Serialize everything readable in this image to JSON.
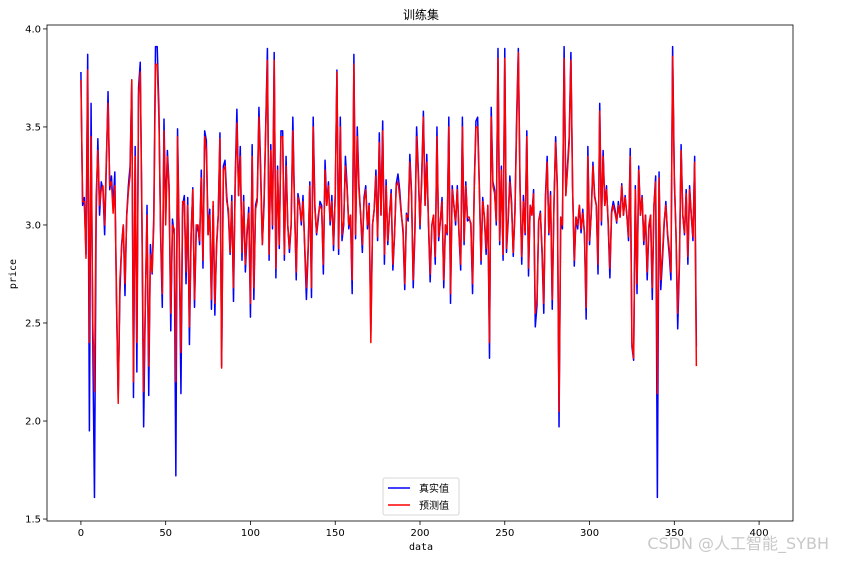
{
  "chart_data": {
    "type": "line",
    "title": "训练集",
    "xlabel": "data",
    "ylabel": "price",
    "xlim": [
      -20,
      420
    ],
    "ylim": [
      1.49,
      4.02
    ],
    "xticks": [
      0,
      50,
      100,
      150,
      200,
      250,
      300,
      350,
      400
    ],
    "yticks": [
      1.5,
      2.0,
      2.5,
      3.0,
      3.5,
      4.0
    ],
    "xtick_labels": [
      "0",
      "50",
      "100",
      "150",
      "200",
      "250",
      "300",
      "350",
      "400"
    ],
    "ytick_labels": [
      "1.5",
      "2.0",
      "2.5",
      "3.0",
      "3.5",
      "4.0"
    ],
    "legend_position": "bottom-center",
    "grid": false,
    "series": [
      {
        "name": "真实值",
        "color": "#0000ff",
        "values": [
          3.78,
          3.1,
          3.14,
          2.85,
          3.87,
          1.95,
          3.62,
          2.4,
          1.61,
          3.05,
          3.44,
          3.05,
          3.22,
          3.18,
          2.95,
          3.3,
          3.68,
          3.18,
          3.25,
          3.1,
          3.27,
          2.6,
          2.12,
          2.65,
          2.9,
          3.0,
          2.64,
          3.05,
          3.2,
          3.3,
          3.74,
          2.12,
          3.4,
          2.25,
          3.7,
          3.83,
          3.0,
          1.97,
          2.6,
          3.1,
          2.13,
          2.9,
          2.75,
          3.05,
          3.91,
          3.91,
          3.6,
          2.95,
          2.58,
          3.54,
          3.05,
          3.38,
          3.2,
          2.46,
          3.03,
          2.95,
          1.72,
          3.49,
          2.9,
          2.14,
          3.1,
          3.15,
          2.7,
          3.14,
          2.39,
          2.95,
          3.19,
          2.58,
          2.96,
          3.0,
          2.9,
          3.28,
          2.78,
          3.48,
          3.43,
          2.95,
          3.08,
          2.57,
          3.1,
          2.54,
          2.9,
          3.05,
          3.47,
          2.28,
          3.3,
          3.33,
          3.15,
          3.05,
          2.85,
          3.15,
          2.61,
          3.24,
          3.59,
          3.15,
          3.4,
          2.82,
          3.15,
          2.76,
          2.95,
          3.09,
          2.53,
          3.41,
          2.62,
          3.1,
          3.14,
          3.6,
          3.3,
          2.9,
          3.1,
          3.5,
          3.9,
          2.82,
          3.41,
          2.98,
          3.88,
          2.73,
          3.3,
          2.88,
          3.48,
          3.48,
          2.82,
          3.35,
          3.0,
          2.86,
          3.0,
          3.55,
          3.1,
          2.72,
          3.16,
          3.11,
          3.0,
          3.15,
          2.88,
          2.62,
          2.86,
          3.22,
          2.63,
          3.55,
          3.1,
          2.95,
          3.03,
          3.12,
          3.1,
          2.75,
          3.33,
          3.1,
          3.22,
          3.0,
          3.15,
          2.87,
          3.16,
          3.79,
          2.85,
          3.55,
          2.92,
          3.0,
          3.35,
          3.2,
          2.98,
          3.05,
          2.65,
          3.87,
          2.93,
          3.5,
          3.2,
          3.05,
          2.86,
          3.14,
          3.2,
          2.98,
          3.11,
          2.45,
          3.0,
          3.08,
          3.28,
          2.92,
          3.47,
          3.05,
          3.53,
          2.8,
          3.23,
          2.9,
          3.05,
          3.18,
          2.77,
          2.95,
          3.21,
          3.26,
          3.18,
          3.06,
          2.96,
          2.67,
          3.06,
          3.02,
          3.36,
          3.17,
          2.68,
          2.96,
          3.5,
          3.28,
          2.98,
          3.25,
          3.58,
          3.1,
          3.36,
          3.0,
          2.71,
          3.0,
          3.05,
          2.8,
          3.5,
          2.92,
          3.02,
          3.14,
          2.68,
          3.0,
          2.95,
          3.55,
          2.6,
          3.2,
          3.1,
          3.0,
          3.2,
          2.95,
          2.77,
          3.55,
          2.9,
          3.22,
          3.02,
          3.03,
          3.01,
          2.65,
          3.2,
          3.53,
          3.55,
          3.2,
          2.8,
          3.14,
          3.03,
          2.85,
          3.1,
          2.32,
          3.6,
          3.22,
          3.18,
          3.0,
          3.9,
          2.9,
          3.3,
          2.82,
          3.9,
          2.86,
          3.02,
          3.25,
          3.12,
          2.84,
          3.07,
          3.55,
          3.9,
          3.2,
          2.8,
          3.15,
          2.95,
          3.48,
          2.74,
          3.1,
          3.05,
          3.18,
          2.48,
          2.59,
          3.02,
          3.07,
          2.85,
          2.55,
          3.15,
          3.35,
          2.95,
          3.17,
          2.57,
          3.1,
          3.45,
          3.2,
          1.97,
          3.04,
          2.98,
          3.91,
          3.15,
          3.3,
          3.45,
          3.88,
          3.2,
          2.79,
          3.04,
          2.98,
          3.1,
          2.96,
          3.08,
          2.95,
          2.52,
          3.4,
          2.9,
          3.06,
          3.32,
          3.15,
          3.1,
          2.75,
          3.62,
          3.0,
          3.38,
          3.1,
          3.2,
          3.0,
          2.73,
          3.07,
          3.12,
          3.08,
          3.01,
          3.12,
          3.04,
          3.21,
          3.05,
          3.15,
          3.05,
          2.92,
          3.39,
          2.38,
          2.31,
          3.2,
          2.65,
          3.3,
          3.05,
          3.15,
          2.9,
          3.05,
          2.72,
          2.98,
          3.05,
          2.62,
          3.1,
          3.25,
          1.61,
          3.27,
          2.67,
          2.82,
          3.0,
          3.12,
          2.95,
          2.85,
          2.72,
          3.91,
          3.25,
          2.95,
          2.47,
          2.79,
          3.41,
          3.05,
          2.95,
          3.18,
          2.8,
          3.2,
          3.05,
          2.92,
          3.35,
          2.38
        ]
      },
      {
        "name": "预测值",
        "color": "#ff0000",
        "values": [
          3.74,
          3.12,
          3.12,
          2.83,
          3.79,
          2.4,
          3.45,
          2.5,
          2.15,
          3.15,
          3.38,
          3.1,
          3.18,
          3.2,
          3.0,
          3.34,
          3.62,
          3.2,
          3.22,
          3.06,
          3.2,
          2.65,
          2.09,
          2.72,
          2.88,
          3.0,
          2.7,
          3.04,
          3.17,
          3.25,
          3.74,
          2.2,
          3.35,
          2.4,
          3.66,
          3.78,
          3.05,
          2.15,
          2.6,
          3.05,
          2.28,
          2.85,
          2.76,
          3.0,
          3.82,
          3.82,
          3.55,
          2.98,
          2.65,
          3.48,
          3.0,
          3.35,
          3.18,
          2.55,
          3.0,
          2.98,
          2.2,
          3.45,
          2.88,
          2.35,
          3.12,
          3.12,
          2.76,
          3.1,
          2.48,
          2.95,
          3.18,
          2.62,
          3.0,
          3.0,
          2.92,
          3.24,
          2.82,
          3.45,
          3.38,
          2.95,
          3.05,
          2.62,
          3.12,
          2.6,
          2.88,
          3.05,
          3.44,
          2.27,
          3.28,
          3.3,
          3.12,
          3.08,
          2.86,
          3.12,
          2.68,
          3.2,
          3.52,
          3.15,
          3.35,
          2.86,
          3.12,
          2.8,
          2.98,
          3.06,
          2.6,
          3.35,
          2.68,
          3.08,
          3.12,
          3.55,
          3.25,
          2.9,
          3.12,
          3.48,
          3.84,
          2.85,
          3.38,
          3.0,
          3.84,
          2.78,
          3.28,
          2.9,
          3.45,
          3.45,
          2.85,
          3.3,
          3.0,
          2.88,
          3.0,
          3.48,
          3.08,
          2.76,
          3.14,
          3.1,
          3.02,
          3.12,
          2.9,
          2.68,
          2.88,
          3.2,
          2.68,
          3.5,
          3.08,
          2.96,
          3.05,
          3.1,
          3.08,
          2.8,
          3.28,
          3.1,
          3.2,
          3.02,
          3.12,
          2.9,
          3.15,
          3.78,
          2.88,
          3.5,
          2.95,
          3.02,
          3.3,
          3.18,
          3.0,
          3.05,
          2.72,
          3.82,
          2.95,
          3.45,
          3.18,
          3.05,
          2.9,
          3.12,
          3.18,
          3.0,
          3.1,
          2.4,
          3.0,
          3.08,
          3.25,
          2.94,
          3.42,
          3.05,
          3.48,
          2.85,
          3.2,
          2.92,
          3.05,
          3.16,
          2.8,
          2.96,
          3.2,
          3.22,
          3.15,
          3.05,
          2.98,
          2.7,
          3.05,
          3.04,
          3.32,
          3.15,
          2.72,
          2.98,
          3.45,
          3.25,
          3.0,
          3.22,
          3.55,
          3.1,
          3.32,
          3.02,
          2.75,
          3.0,
          3.05,
          2.84,
          3.45,
          2.94,
          3.02,
          3.12,
          2.72,
          3.0,
          2.96,
          3.5,
          2.65,
          3.18,
          3.1,
          3.02,
          3.18,
          2.96,
          2.8,
          3.5,
          2.92,
          3.2,
          3.04,
          3.04,
          3.0,
          2.7,
          3.18,
          3.5,
          3.5,
          3.18,
          2.82,
          3.12,
          3.04,
          2.88,
          3.1,
          2.4,
          3.55,
          3.2,
          3.16,
          3.02,
          3.85,
          2.92,
          3.28,
          2.85,
          3.85,
          2.88,
          3.04,
          3.22,
          3.1,
          2.86,
          3.06,
          3.5,
          3.88,
          3.18,
          2.84,
          3.12,
          2.96,
          3.45,
          2.78,
          3.1,
          3.05,
          3.16,
          2.55,
          2.62,
          3.02,
          3.06,
          2.88,
          2.6,
          3.12,
          3.32,
          2.96,
          3.15,
          2.62,
          3.1,
          3.42,
          3.18,
          2.05,
          3.04,
          3.0,
          3.85,
          3.15,
          3.28,
          3.42,
          3.84,
          3.18,
          2.82,
          3.04,
          3.0,
          3.1,
          2.98,
          3.06,
          2.96,
          2.58,
          3.35,
          2.92,
          3.06,
          3.3,
          3.14,
          3.1,
          2.8,
          3.58,
          3.02,
          3.35,
          3.1,
          3.18,
          3.02,
          2.78,
          3.06,
          3.1,
          3.06,
          3.02,
          3.1,
          3.04,
          3.2,
          3.05,
          3.14,
          3.05,
          2.94,
          3.35,
          2.4,
          2.32,
          3.18,
          2.7,
          3.28,
          3.05,
          3.14,
          2.92,
          3.05,
          2.76,
          3.0,
          3.05,
          2.68,
          3.1,
          3.22,
          2.14,
          3.24,
          2.72,
          2.85,
          3.02,
          3.1,
          2.96,
          2.88,
          2.76,
          3.86,
          3.22,
          2.96,
          2.55,
          2.82,
          3.38,
          3.05,
          2.96,
          3.16,
          2.84,
          3.18,
          3.05,
          2.94,
          3.32,
          2.28
        ]
      }
    ]
  },
  "watermark": "CSDN @人工智能_SYBH"
}
